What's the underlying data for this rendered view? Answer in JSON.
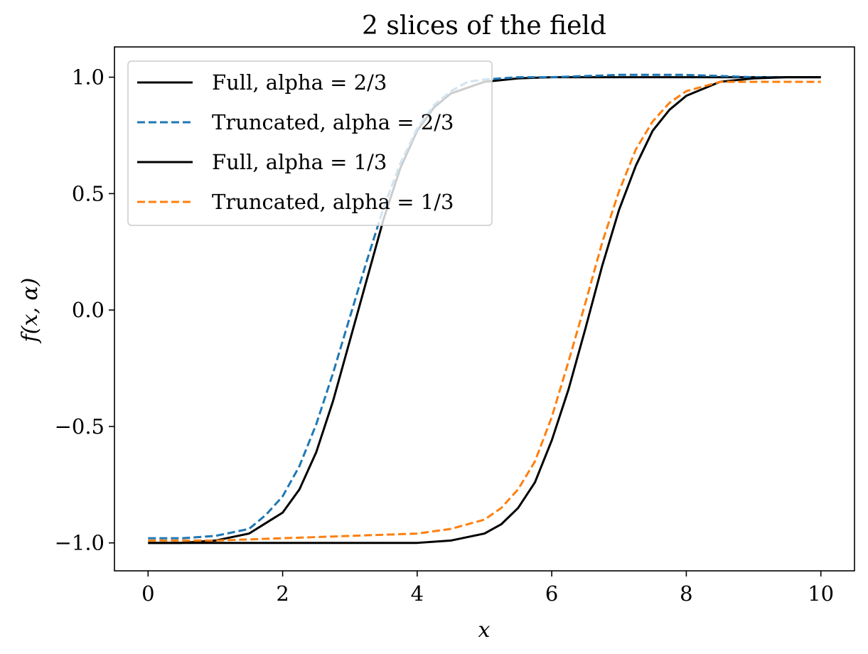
{
  "chart_data": {
    "type": "line",
    "title": "2 slices of the field",
    "xlabel": "x",
    "ylabel": "f(x, α)",
    "xlim": [
      -0.5,
      10.5
    ],
    "ylim": [
      -1.12,
      1.13
    ],
    "xticks": [
      0,
      2,
      4,
      6,
      8,
      10
    ],
    "xtick_labels": [
      "0",
      "2",
      "4",
      "6",
      "8",
      "10"
    ],
    "yticks": [
      -1.0,
      -0.5,
      0.0,
      0.5,
      1.0
    ],
    "ytick_labels": [
      "−1.0",
      "−0.5",
      "0.0",
      "0.5",
      "1.0"
    ],
    "grid": false,
    "legend_position": "top-left",
    "series": [
      {
        "name": "Full, alpha = 2/3",
        "style": "solid",
        "color": "#000000",
        "x": [
          0,
          0.5,
          1.0,
          1.5,
          2.0,
          2.25,
          2.5,
          2.75,
          3.0,
          3.25,
          3.5,
          3.75,
          4.0,
          4.25,
          4.5,
          5.0,
          5.5,
          6.0,
          6.5,
          7.0,
          8.0,
          9.0,
          10.0
        ],
        "y": [
          -1.0,
          -1.0,
          -0.99,
          -0.96,
          -0.87,
          -0.77,
          -0.61,
          -0.39,
          -0.13,
          0.13,
          0.39,
          0.61,
          0.77,
          0.87,
          0.93,
          0.98,
          0.995,
          1.0,
          1.0,
          1.0,
          1.0,
          1.0,
          1.0
        ]
      },
      {
        "name": "Truncated, alpha = 2/3",
        "style": "dashed",
        "color": "#1f77b4",
        "x": [
          0,
          0.5,
          1.0,
          1.5,
          1.75,
          2.0,
          2.25,
          2.5,
          2.75,
          3.0,
          3.25,
          3.5,
          3.75,
          4.0,
          4.25,
          4.5,
          4.75,
          5.0,
          5.5,
          6.0,
          7.0,
          8.0,
          9.0,
          10.0
        ],
        "y": [
          -0.98,
          -0.98,
          -0.97,
          -0.94,
          -0.88,
          -0.8,
          -0.67,
          -0.49,
          -0.27,
          -0.03,
          0.21,
          0.44,
          0.63,
          0.78,
          0.88,
          0.94,
          0.98,
          0.99,
          1.0,
          1.0,
          1.01,
          1.01,
          1.0,
          1.0
        ]
      },
      {
        "name": "Full, alpha = 1/3",
        "style": "solid",
        "color": "#000000",
        "x": [
          0,
          1.0,
          2.0,
          3.0,
          4.0,
          4.5,
          5.0,
          5.25,
          5.5,
          5.75,
          6.0,
          6.25,
          6.5,
          6.75,
          7.0,
          7.25,
          7.5,
          7.75,
          8.0,
          8.5,
          9.0,
          9.5,
          10.0
        ],
        "y": [
          -1.0,
          -1.0,
          -1.0,
          -1.0,
          -1.0,
          -0.99,
          -0.96,
          -0.92,
          -0.85,
          -0.74,
          -0.56,
          -0.34,
          -0.08,
          0.19,
          0.43,
          0.62,
          0.77,
          0.86,
          0.92,
          0.98,
          0.995,
          1.0,
          1.0
        ]
      },
      {
        "name": "Truncated, alpha = 1/3",
        "style": "dashed",
        "color": "#ff7f0e",
        "x": [
          0,
          1.0,
          2.0,
          3.0,
          4.0,
          4.5,
          5.0,
          5.25,
          5.5,
          5.75,
          6.0,
          6.25,
          6.5,
          6.75,
          7.0,
          7.25,
          7.5,
          7.75,
          8.0,
          8.5,
          9.0,
          9.5,
          10.0
        ],
        "y": [
          -0.99,
          -0.99,
          -0.98,
          -0.97,
          -0.96,
          -0.94,
          -0.9,
          -0.85,
          -0.77,
          -0.65,
          -0.46,
          -0.22,
          0.03,
          0.29,
          0.51,
          0.69,
          0.81,
          0.89,
          0.94,
          0.98,
          0.98,
          0.98,
          0.98
        ]
      }
    ]
  }
}
